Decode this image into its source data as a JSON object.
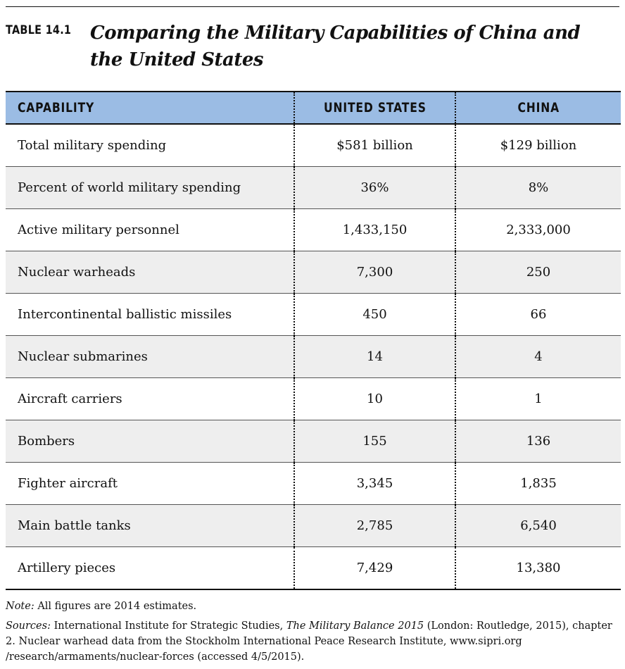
{
  "caption": {
    "label": "TABLE 14.1",
    "title_line1": "Comparing the Military Capabilities of China and",
    "title_line2": "the United States"
  },
  "table": {
    "headers": [
      "CAPABILITY",
      "UNITED STATES",
      "CHINA"
    ],
    "rows": [
      [
        "Total military spending",
        "$581 billion",
        "$129 billion"
      ],
      [
        "Percent of world military spending",
        "36%",
        "8%"
      ],
      [
        "Active military personnel",
        "1,433,150",
        "2,333,000"
      ],
      [
        "Nuclear warheads",
        "7,300",
        "250"
      ],
      [
        "Intercontinental ballistic missiles",
        "450",
        "66"
      ],
      [
        "Nuclear submarines",
        "14",
        "4"
      ],
      [
        "Aircraft carriers",
        "10",
        "1"
      ],
      [
        "Bombers",
        "155",
        "136"
      ],
      [
        "Fighter aircraft",
        "3,345",
        "1,835"
      ],
      [
        "Main battle tanks",
        "2,785",
        "6,540"
      ],
      [
        "Artillery pieces",
        "7,429",
        "13,380"
      ]
    ],
    "header_color": "#9bbce4",
    "shade_color": "#eeeeee"
  },
  "notes": {
    "note_label": "Note:",
    "note_text": " All figures are 2014 estimates.",
    "sources_label": "Sources:",
    "sources_text_1": " International Institute for Strategic Studies, ",
    "sources_italic": "The Military Balance 2015",
    "sources_text_2": " (London: Routledge, 2015), chapter 2. Nuclear warhead data from the Stockholm International Peace Research Institute, www.sipri.org /research/armaments/nuclear-forces (accessed 4/5/2015)."
  }
}
